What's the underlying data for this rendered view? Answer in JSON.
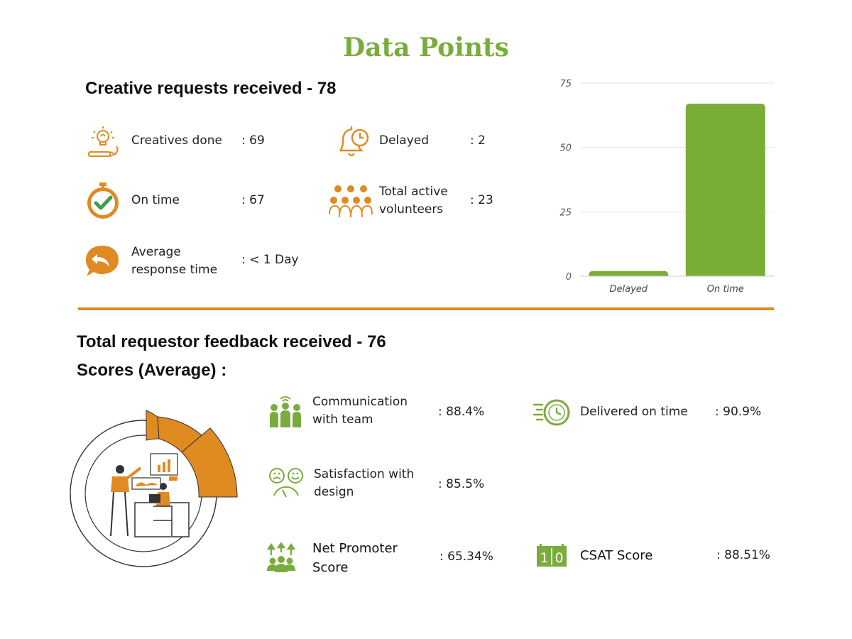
{
  "title": "Data Points",
  "creative": {
    "heading": "Creative requests received - 78",
    "items": [
      {
        "icon": "lightbulb-pencil-icon",
        "label": "Creatives done",
        "value": ": 69"
      },
      {
        "icon": "alarm-bell-icon",
        "label": "Delayed",
        "value": ": 2"
      },
      {
        "icon": "stopwatch-check-icon",
        "label": "On time",
        "value": ": 67"
      },
      {
        "icon": "volunteers-group-icon",
        "label": "Total active volunteers",
        "label_line1": "Total active",
        "label_line2": "volunteers",
        "value": ": 23"
      },
      {
        "icon": "reply-bubble-icon",
        "label": "Average response time",
        "label_line1": "Average",
        "label_line2": "response time",
        "value": ": < 1 Day"
      }
    ]
  },
  "feedback": {
    "heading": "Total requestor feedback received - 76",
    "subheading": "Scores (Average) :",
    "items": [
      {
        "icon": "team-communication-icon",
        "label_line1": "Communication",
        "label_line2": "with team",
        "value": ": 88.4%"
      },
      {
        "icon": "delivery-clock-icon",
        "label": "Delivered on time",
        "value": ": 90.9%"
      },
      {
        "icon": "satisfaction-meter-icon",
        "label_line1": "Satisfaction with",
        "label_line2": "design",
        "value": ": 85.5%"
      },
      {
        "icon": "promoters-arrows-icon",
        "label_line1": "Net Promoter",
        "label_line2": "Score",
        "value": ": 65.34%"
      },
      {
        "icon": "score-counter-icon",
        "label": "CSAT Score",
        "value": ": 88.51%",
        "counter_digits": [
          "1",
          "0"
        ]
      }
    ]
  },
  "colors": {
    "green": "#7aac3d",
    "orange": "#e08a22",
    "bar": "#78ad38"
  },
  "chart_data": {
    "type": "bar",
    "categories": [
      "Delayed",
      "On time"
    ],
    "values": [
      2,
      67
    ],
    "ylim": [
      0,
      75
    ],
    "yticks": [
      "0",
      "25",
      "50",
      "75"
    ],
    "grid": true,
    "title": "",
    "xlabel": "",
    "ylabel": ""
  }
}
